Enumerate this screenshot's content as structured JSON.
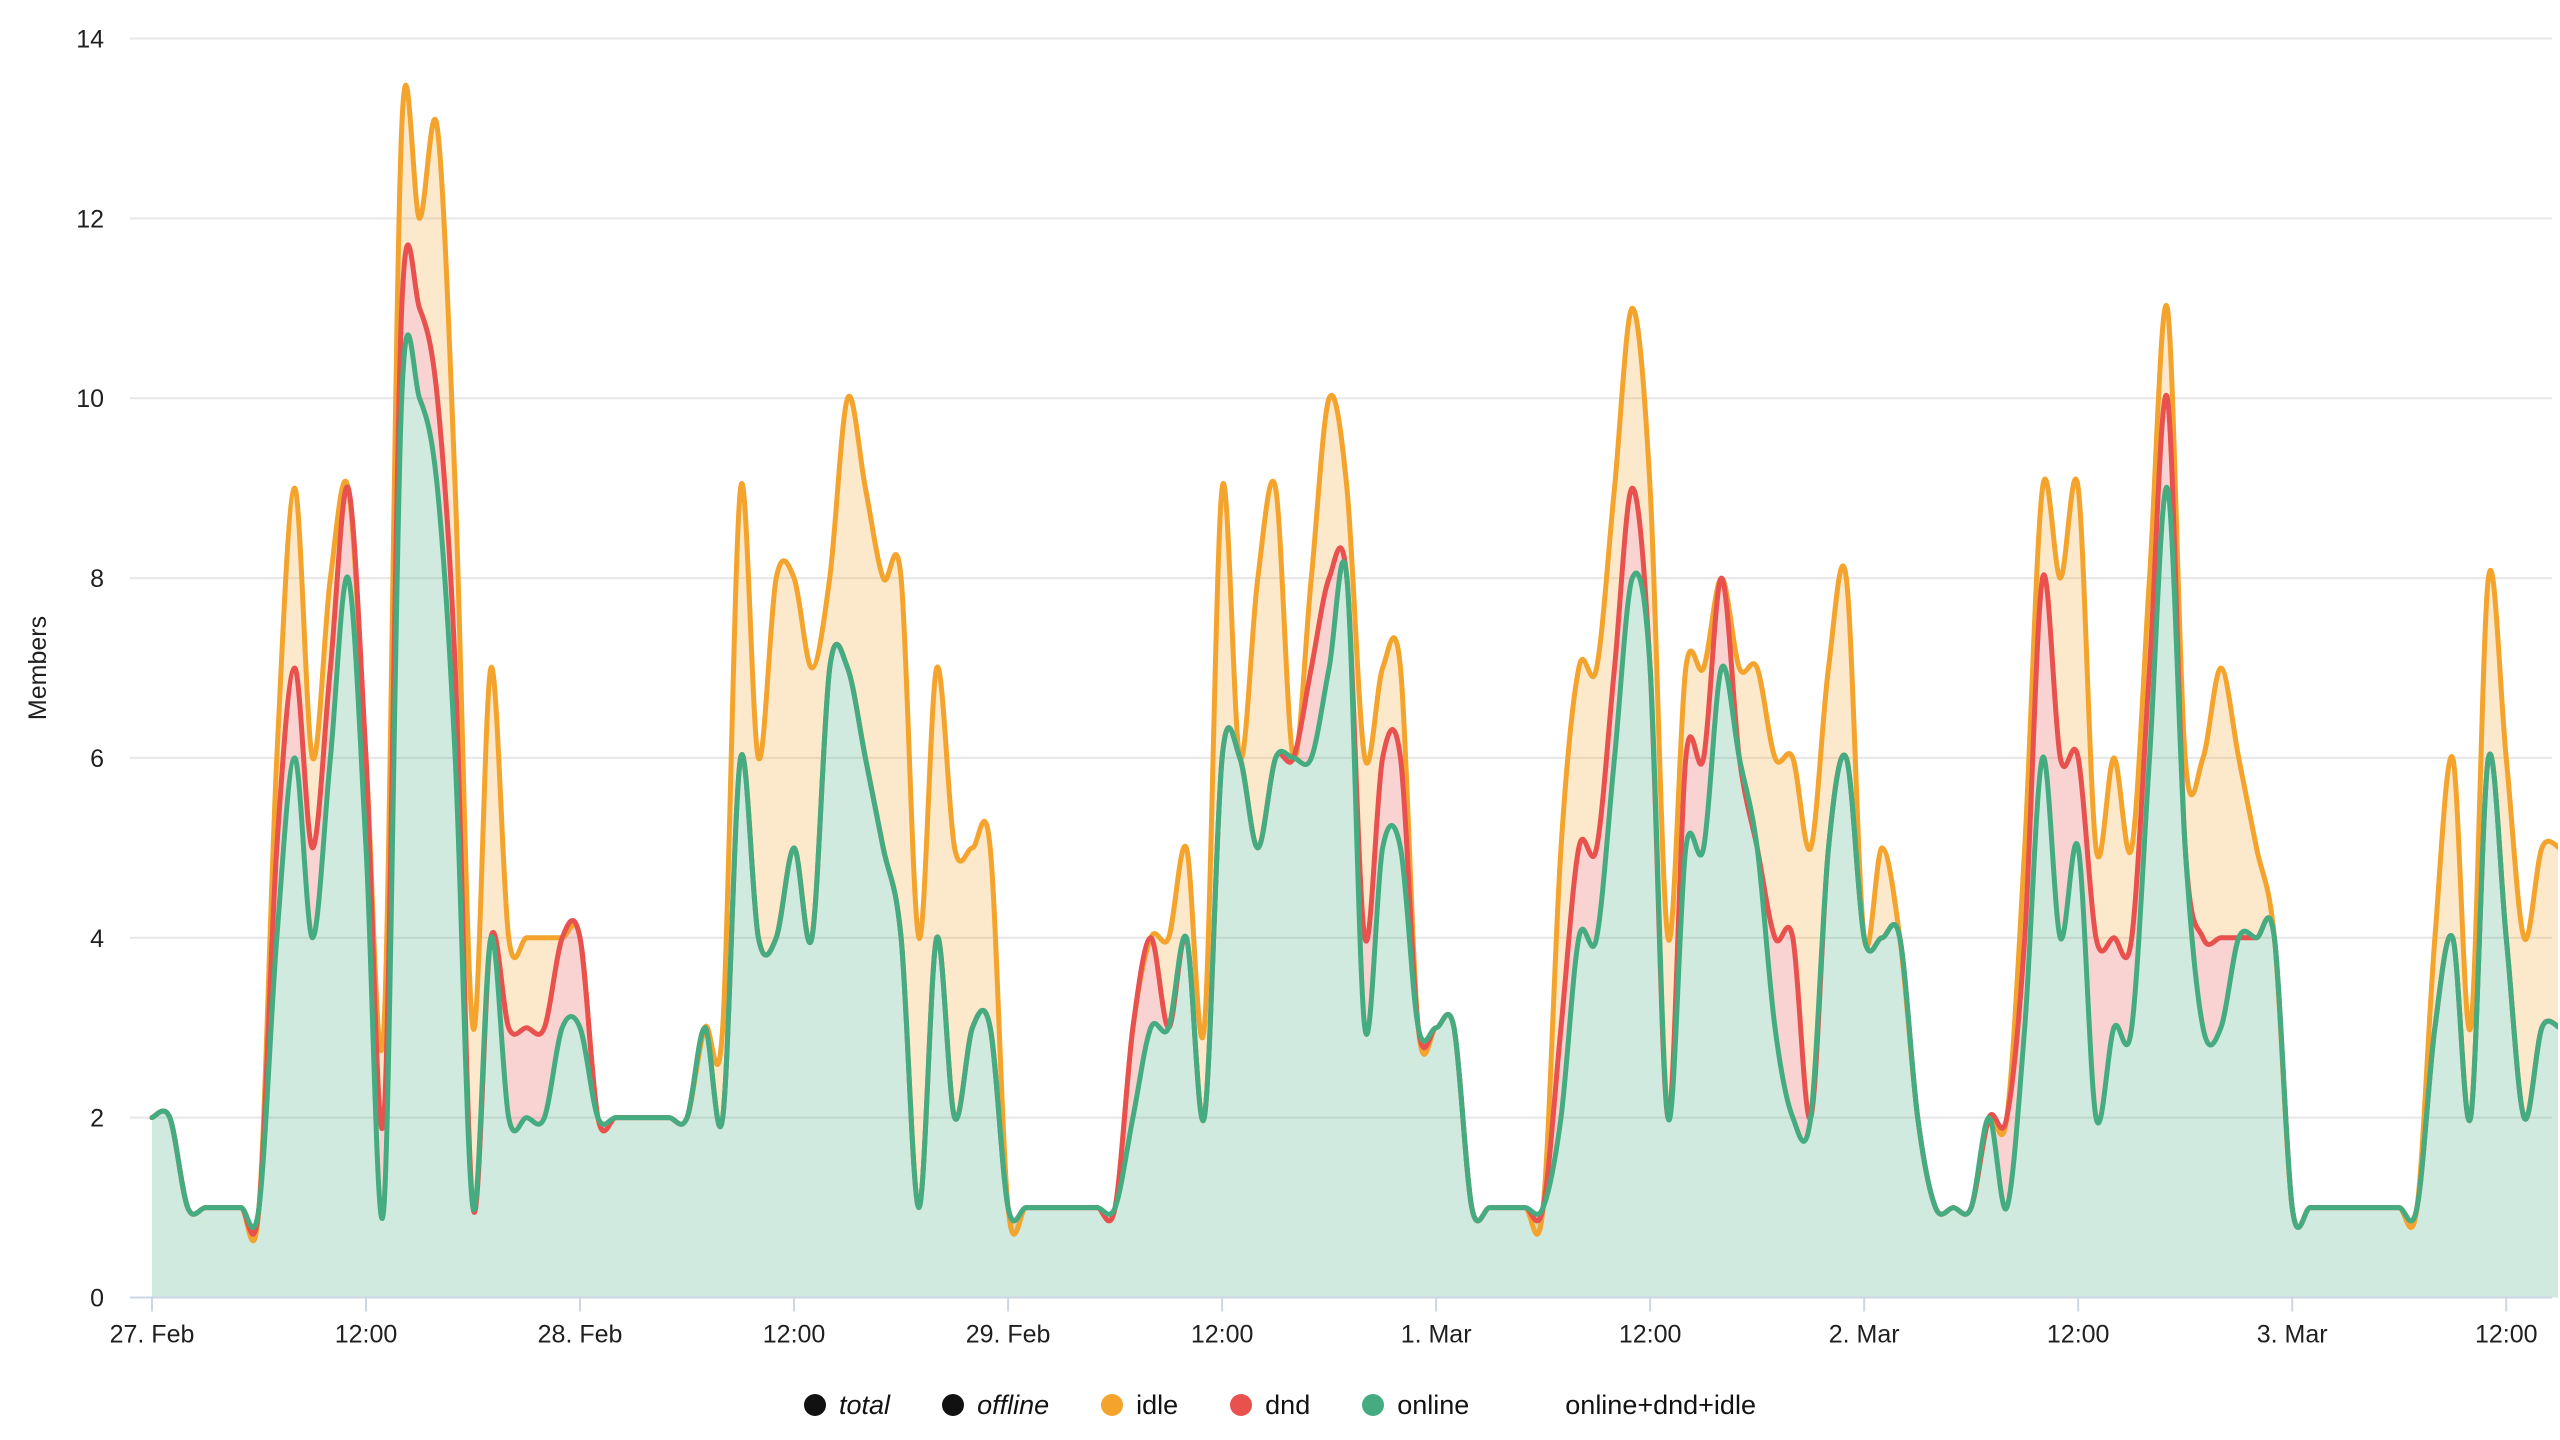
{
  "chart": {
    "ylabel": "Members",
    "y_ticks": [
      0,
      2,
      4,
      6,
      8,
      10,
      12,
      14
    ],
    "colors": {
      "online_line": "#45AC81",
      "dnd_line": "#E8514D",
      "idle_line": "#F4A42C",
      "online_fill": "rgba(69,172,129,0.25)",
      "dnd_fill": "rgba(232,81,77,0.25)",
      "idle_fill": "rgba(244,164,44,0.25)",
      "grid": "#E7E7E7",
      "axis": "#CDD6E5",
      "text": "#1F1F1F",
      "legend_disabled_marker": "#111111"
    },
    "legend": {
      "items": [
        {
          "label": "total",
          "marker": "#111111",
          "italic": true
        },
        {
          "label": "offline",
          "marker": "#111111",
          "italic": true
        },
        {
          "label": "idle",
          "marker": "#F4A42C",
          "italic": false
        },
        {
          "label": "dnd",
          "marker": "#E8514D",
          "italic": false
        },
        {
          "label": "online",
          "marker": "#45AC81",
          "italic": false
        },
        {
          "label": "online+dnd+idle",
          "marker": null,
          "italic": false
        }
      ]
    }
  },
  "chart_data": {
    "type": "area",
    "stacking": "normal",
    "title": "",
    "xlabel": "",
    "ylabel": "Members",
    "ylim": [
      0,
      14
    ],
    "grid": "horizontal-only",
    "legend_position": "bottom-center",
    "x_unit": "hours since 27 Feb 00:00, one point per hour",
    "x_tick_positions": [
      0,
      12,
      24,
      36,
      48,
      60,
      72,
      84,
      96,
      108,
      120,
      132
    ],
    "x_tick_labels": [
      "27. Feb",
      "12:00",
      "28. Feb",
      "12:00",
      "29. Feb",
      "12:00",
      "1. Mar",
      "12:00",
      "2. Mar",
      "12:00",
      "3. Mar",
      "12:00"
    ],
    "hidden_series": [
      "total",
      "offline"
    ],
    "series": [
      {
        "name": "online",
        "color": "#45AC81",
        "values": [
          2,
          2,
          1,
          1,
          1,
          1,
          1,
          4,
          6,
          4,
          6,
          8,
          5,
          1,
          10,
          10,
          9,
          6,
          1,
          4,
          2,
          2,
          2,
          3,
          3,
          2,
          2,
          2,
          2,
          2,
          2,
          3,
          2,
          6,
          4,
          4,
          5,
          4,
          7,
          7,
          6,
          5,
          4,
          1,
          4,
          2,
          3,
          3,
          1,
          1,
          1,
          1,
          1,
          1,
          1,
          2,
          3,
          3,
          4,
          2,
          6,
          6,
          5,
          6,
          6,
          6,
          7,
          8,
          3,
          5,
          5,
          3,
          3,
          3,
          1,
          1,
          1,
          1,
          1,
          2,
          4,
          4,
          6,
          8,
          7,
          2,
          5,
          5,
          7,
          6,
          5,
          3,
          2,
          2,
          5,
          6,
          4,
          4,
          4,
          2,
          1,
          1,
          1,
          2,
          1,
          3,
          6,
          4,
          5,
          2,
          3,
          3,
          6,
          9,
          5,
          3,
          3,
          4,
          4,
          4,
          1,
          1,
          1,
          1,
          1,
          1,
          1,
          1,
          3,
          4,
          2,
          6,
          4,
          2,
          3,
          3
        ]
      },
      {
        "name": "dnd",
        "color": "#E8514D",
        "values": [
          0,
          0,
          0,
          0,
          0,
          0,
          0,
          1,
          1,
          1,
          1,
          1,
          1,
          1,
          1,
          1,
          1,
          1,
          0,
          0,
          1,
          1,
          1,
          1,
          1,
          0,
          0,
          0,
          0,
          0,
          0,
          0,
          0,
          0,
          0,
          0,
          0,
          0,
          0,
          0,
          0,
          0,
          0,
          0,
          0,
          0,
          0,
          0,
          0,
          0,
          0,
          0,
          0,
          0,
          0,
          1,
          1,
          0,
          0,
          0,
          0,
          0,
          0,
          0,
          0,
          1,
          1,
          0,
          1,
          1,
          1,
          0,
          0,
          0,
          0,
          0,
          0,
          0,
          0,
          1,
          1,
          1,
          1,
          1,
          0,
          0,
          1,
          1,
          1,
          0,
          0,
          1,
          2,
          0,
          0,
          0,
          0,
          0,
          0,
          0,
          0,
          0,
          0,
          0,
          1,
          1,
          2,
          2,
          1,
          2,
          1,
          1,
          1,
          1,
          0,
          1,
          1,
          0,
          0,
          0,
          0,
          0,
          0,
          0,
          0,
          0,
          0,
          0,
          0,
          0,
          0,
          0,
          0,
          0,
          0,
          0
        ]
      },
      {
        "name": "idle",
        "color": "#F4A42C",
        "values": [
          0,
          0,
          0,
          0,
          0,
          0,
          0,
          1,
          2,
          1,
          1,
          0,
          0,
          1,
          2,
          1,
          3,
          2,
          2,
          3,
          1,
          1,
          1,
          0,
          0,
          0,
          0,
          0,
          0,
          0,
          0,
          0,
          1,
          3,
          2,
          4,
          3,
          3,
          1,
          3,
          3,
          3,
          4,
          3,
          3,
          3,
          2,
          2,
          0,
          0,
          0,
          0,
          0,
          0,
          0,
          0,
          0,
          1,
          1,
          1,
          3,
          0,
          3,
          3,
          0,
          1,
          2,
          1,
          2,
          1,
          1,
          0,
          0,
          0,
          0,
          0,
          0,
          0,
          0,
          2,
          2,
          2,
          2,
          2,
          2,
          2,
          1,
          1,
          0,
          1,
          2,
          2,
          2,
          3,
          2,
          2,
          0,
          1,
          0,
          0,
          0,
          0,
          0,
          0,
          0,
          1,
          1,
          2,
          3,
          1,
          2,
          1,
          1,
          1,
          1,
          2,
          3,
          2,
          1,
          0,
          0,
          0,
          0,
          0,
          0,
          0,
          0,
          0,
          1,
          2,
          1,
          2,
          2,
          2,
          2,
          2
        ]
      }
    ],
    "stack_note": "visible stack top = online+dnd+idle"
  }
}
